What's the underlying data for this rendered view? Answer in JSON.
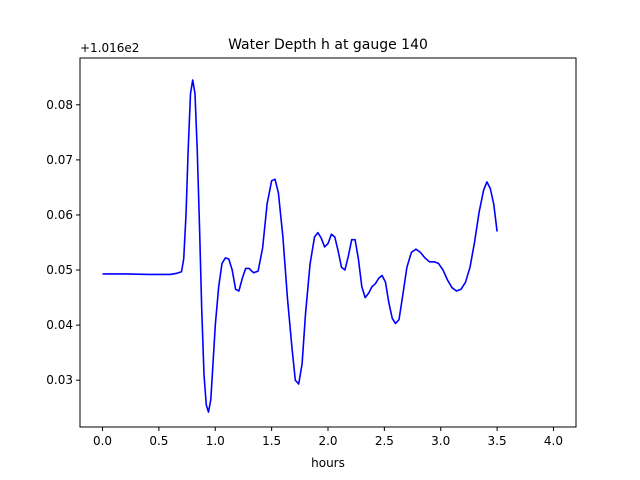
{
  "chart_data": {
    "type": "line",
    "title": "Water Depth h at gauge 140",
    "xlabel": "hours",
    "ylabel": "",
    "offset_label": "+1.016e2",
    "y_offset": 101.6,
    "xlim": [
      -0.2,
      4.2
    ],
    "ylim": [
      0.0215,
      0.0885
    ],
    "x_ticks": [
      0.0,
      0.5,
      1.0,
      1.5,
      2.0,
      2.5,
      3.0,
      3.5,
      4.0
    ],
    "x_tick_labels": [
      "0.0",
      "0.5",
      "1.0",
      "1.5",
      "2.0",
      "2.5",
      "3.0",
      "3.5",
      "4.0"
    ],
    "y_ticks": [
      0.03,
      0.04,
      0.05,
      0.06,
      0.07,
      0.08
    ],
    "y_tick_labels": [
      "0.03",
      "0.04",
      "0.05",
      "0.06",
      "0.07",
      "0.08"
    ],
    "grid": false,
    "colors": {
      "line": "#0000ff",
      "axes": "#000000",
      "background": "#ffffff"
    },
    "series": [
      {
        "points": [
          [
            0.0,
            0.0493
          ],
          [
            0.2,
            0.0493
          ],
          [
            0.4,
            0.0492
          ],
          [
            0.6,
            0.0492
          ],
          [
            0.66,
            0.0494
          ],
          [
            0.7,
            0.0497
          ],
          [
            0.72,
            0.052
          ],
          [
            0.74,
            0.06
          ],
          [
            0.76,
            0.072
          ],
          [
            0.78,
            0.082
          ],
          [
            0.8,
            0.0845
          ],
          [
            0.82,
            0.082
          ],
          [
            0.84,
            0.072
          ],
          [
            0.86,
            0.058
          ],
          [
            0.88,
            0.043
          ],
          [
            0.9,
            0.031
          ],
          [
            0.92,
            0.0255
          ],
          [
            0.94,
            0.0242
          ],
          [
            0.96,
            0.0265
          ],
          [
            0.98,
            0.033
          ],
          [
            1.0,
            0.04
          ],
          [
            1.03,
            0.047
          ],
          [
            1.06,
            0.0512
          ],
          [
            1.09,
            0.0522
          ],
          [
            1.12,
            0.052
          ],
          [
            1.15,
            0.05
          ],
          [
            1.18,
            0.0465
          ],
          [
            1.21,
            0.0462
          ],
          [
            1.24,
            0.0485
          ],
          [
            1.27,
            0.0503
          ],
          [
            1.3,
            0.0503
          ],
          [
            1.34,
            0.0495
          ],
          [
            1.38,
            0.0498
          ],
          [
            1.42,
            0.054
          ],
          [
            1.46,
            0.062
          ],
          [
            1.5,
            0.0662
          ],
          [
            1.53,
            0.0665
          ],
          [
            1.56,
            0.064
          ],
          [
            1.6,
            0.056
          ],
          [
            1.64,
            0.045
          ],
          [
            1.68,
            0.036
          ],
          [
            1.71,
            0.03
          ],
          [
            1.74,
            0.0293
          ],
          [
            1.77,
            0.033
          ],
          [
            1.8,
            0.042
          ],
          [
            1.84,
            0.051
          ],
          [
            1.88,
            0.056
          ],
          [
            1.91,
            0.0568
          ],
          [
            1.94,
            0.0558
          ],
          [
            1.97,
            0.0542
          ],
          [
            2.0,
            0.0548
          ],
          [
            2.03,
            0.0565
          ],
          [
            2.06,
            0.056
          ],
          [
            2.09,
            0.0535
          ],
          [
            2.12,
            0.0505
          ],
          [
            2.15,
            0.05
          ],
          [
            2.18,
            0.0525
          ],
          [
            2.21,
            0.0555
          ],
          [
            2.24,
            0.0555
          ],
          [
            2.27,
            0.052
          ],
          [
            2.3,
            0.047
          ],
          [
            2.33,
            0.045
          ],
          [
            2.36,
            0.0458
          ],
          [
            2.39,
            0.047
          ],
          [
            2.42,
            0.0475
          ],
          [
            2.45,
            0.0485
          ],
          [
            2.48,
            0.049
          ],
          [
            2.51,
            0.0478
          ],
          [
            2.54,
            0.044
          ],
          [
            2.57,
            0.0412
          ],
          [
            2.6,
            0.0403
          ],
          [
            2.63,
            0.041
          ],
          [
            2.66,
            0.045
          ],
          [
            2.7,
            0.0505
          ],
          [
            2.74,
            0.0532
          ],
          [
            2.78,
            0.0538
          ],
          [
            2.82,
            0.0532
          ],
          [
            2.86,
            0.0522
          ],
          [
            2.9,
            0.0515
          ],
          [
            2.94,
            0.0515
          ],
          [
            2.98,
            0.0512
          ],
          [
            3.02,
            0.05
          ],
          [
            3.06,
            0.0482
          ],
          [
            3.1,
            0.0468
          ],
          [
            3.14,
            0.0462
          ],
          [
            3.18,
            0.0465
          ],
          [
            3.22,
            0.0478
          ],
          [
            3.26,
            0.0505
          ],
          [
            3.3,
            0.055
          ],
          [
            3.34,
            0.0605
          ],
          [
            3.38,
            0.0645
          ],
          [
            3.41,
            0.066
          ],
          [
            3.44,
            0.0648
          ],
          [
            3.47,
            0.062
          ],
          [
            3.5,
            0.057
          ]
        ]
      }
    ]
  }
}
